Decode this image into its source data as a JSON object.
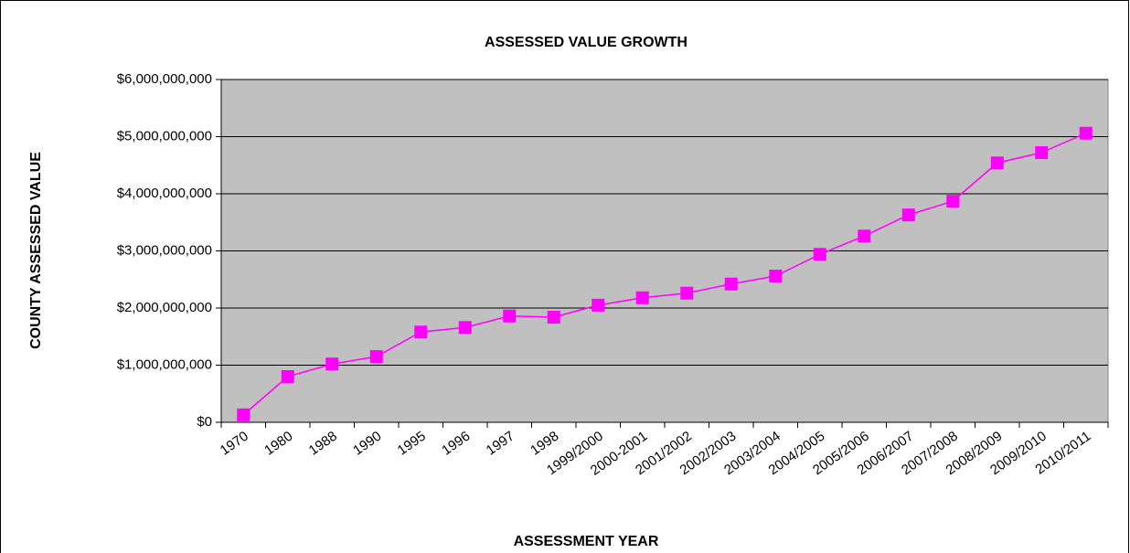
{
  "chart_data": {
    "type": "line",
    "title": "ASSESSED VALUE GROWTH",
    "x_label": "ASSESSMENT  YEAR",
    "y_label": "COUNTY ASSESSED  VALUE",
    "categories": [
      "1970",
      "1980",
      "1988",
      "1990",
      "1995",
      "1996",
      "1997",
      "1998",
      "1999/2000",
      "2000-2001",
      "2001/2002",
      "2002/2003",
      "2003/2004",
      "2004/2005",
      "2005/2006",
      "2006/2007",
      "2007/2008",
      "2008/2009",
      "2009/2010",
      "2010/2011"
    ],
    "series": [
      {
        "name": "County Assessed Value",
        "color": "#ff00ff",
        "values": [
          130000000,
          800000000,
          1020000000,
          1150000000,
          1580000000,
          1660000000,
          1860000000,
          1840000000,
          2050000000,
          2180000000,
          2260000000,
          2420000000,
          2560000000,
          2940000000,
          3260000000,
          3630000000,
          3870000000,
          4540000000,
          4720000000,
          5060000000
        ]
      }
    ],
    "ylim": [
      0,
      6000000000
    ],
    "yticks": [
      {
        "value": 0,
        "label": "$0"
      },
      {
        "value": 1000000000,
        "label": "$1,000,000,000"
      },
      {
        "value": 2000000000,
        "label": "$2,000,000,000"
      },
      {
        "value": 3000000000,
        "label": "$3,000,000,000"
      },
      {
        "value": 4000000000,
        "label": "$4,000,000,000"
      },
      {
        "value": 5000000000,
        "label": "$5,000,000,000"
      },
      {
        "value": 6000000000,
        "label": "$6,000,000,000"
      }
    ],
    "grid": true,
    "plot_background": "#c0c0c0"
  }
}
